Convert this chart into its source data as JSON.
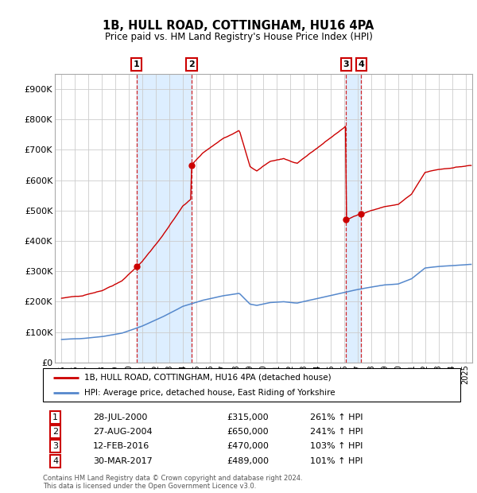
{
  "title": "1B, HULL ROAD, COTTINGHAM, HU16 4PA",
  "subtitle": "Price paid vs. HM Land Registry's House Price Index (HPI)",
  "legend_line1": "1B, HULL ROAD, COTTINGHAM, HU16 4PA (detached house)",
  "legend_line2": "HPI: Average price, detached house, East Riding of Yorkshire",
  "footer1": "Contains HM Land Registry data © Crown copyright and database right 2024.",
  "footer2": "This data is licensed under the Open Government Licence v3.0.",
  "transactions": [
    {
      "num": 1,
      "date": "28-JUL-2000",
      "price": "£315,000",
      "hpi": "261% ↑ HPI",
      "year": 2000.57
    },
    {
      "num": 2,
      "date": "27-AUG-2004",
      "price": "£650,000",
      "hpi": "241% ↑ HPI",
      "year": 2004.66
    },
    {
      "num": 3,
      "date": "12-FEB-2016",
      "price": "£470,000",
      "hpi": "103% ↑ HPI",
      "year": 2016.12
    },
    {
      "num": 4,
      "date": "30-MAR-2017",
      "price": "£489,000",
      "hpi": "101% ↑ HPI",
      "year": 2017.25
    }
  ],
  "sale_prices": [
    315000,
    650000,
    470000,
    489000
  ],
  "hpi_color": "#5588cc",
  "price_color": "#cc0000",
  "shade_color": "#ddeeff",
  "ylim": [
    0,
    950000
  ],
  "yticks": [
    0,
    100000,
    200000,
    300000,
    400000,
    500000,
    600000,
    700000,
    800000,
    900000
  ],
  "ytick_labels": [
    "£0",
    "£100K",
    "£200K",
    "£300K",
    "£400K",
    "£500K",
    "£600K",
    "£700K",
    "£800K",
    "£900K"
  ],
  "xlim_start": 1994.5,
  "xlim_end": 2025.5,
  "background": "#ffffff"
}
